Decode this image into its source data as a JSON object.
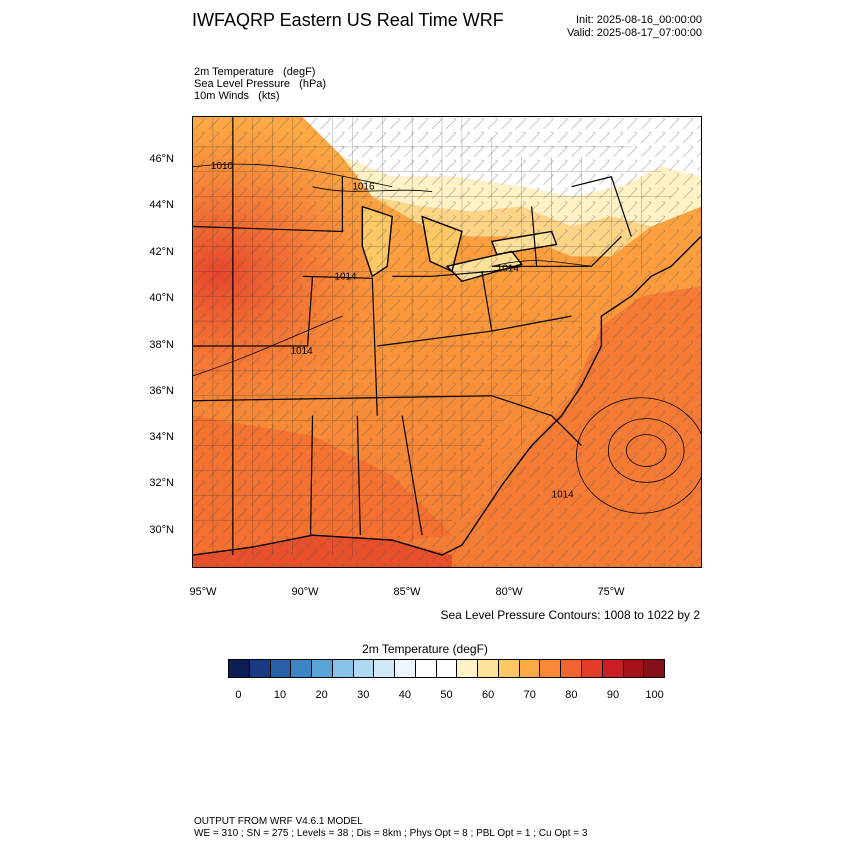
{
  "header": {
    "title": "IWFAQRP Eastern US Real Time WRF",
    "init": "Init: 2025-08-16_00:00:00",
    "valid": "Valid: 2025-08-17_07:00:00"
  },
  "fields": [
    "2m Temperature   (degF)",
    "Sea Level Pressure   (hPa)",
    "10m Winds   (kts)"
  ],
  "map": {
    "lat_labels": [
      "46°N",
      "44°N",
      "42°N",
      "40°N",
      "38°N",
      "36°N",
      "34°N",
      "32°N",
      "30°N"
    ],
    "lon_labels": [
      "95°W",
      "90°W",
      "85°W",
      "80°W",
      "75°W"
    ],
    "isobar_labels": [
      "1010",
      "1016",
      "1014",
      "1014",
      "1014",
      "1014"
    ],
    "contour_note": "Sea Level Pressure Contours: 1008 to 1022 by 2"
  },
  "colorbar": {
    "title": "2m Temperature  (degF)",
    "ticks": [
      "0",
      "10",
      "20",
      "30",
      "40",
      "50",
      "60",
      "70",
      "80",
      "90",
      "100"
    ],
    "colors": [
      "#0c1f55",
      "#1a3a85",
      "#2660a8",
      "#3c84c4",
      "#5aa5d8",
      "#85c4e8",
      "#add9f1",
      "#cfe9f7",
      "#ecf6fb",
      "#ffffff",
      "#ffffff",
      "#fff2c6",
      "#fee29a",
      "#fec865",
      "#fdab45",
      "#fa8836",
      "#f36430",
      "#e33d2a",
      "#c81e24",
      "#a51218",
      "#85101a"
    ]
  },
  "footer": {
    "line1": "OUTPUT FROM WRF V4.6.1 MODEL",
    "line2": "WE = 310 ; SN = 275 ; Levels = 38 ; Dis = 8km ; Phys Opt = 8 ; PBL Opt = 1 ; Cu Opt = 3"
  }
}
